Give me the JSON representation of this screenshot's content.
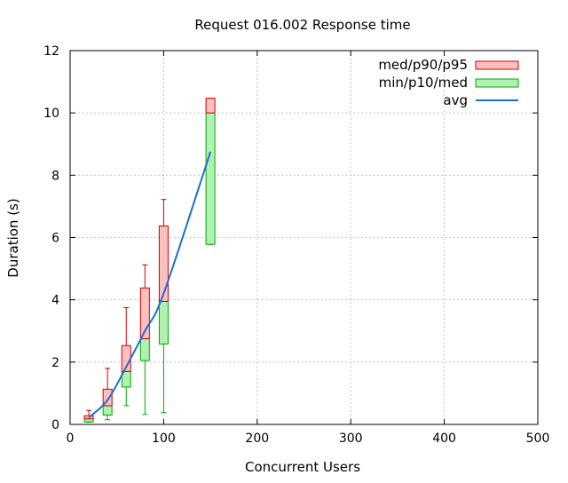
{
  "chart_data": {
    "type": "box",
    "title": "Request 016.002 Response time",
    "xlabel": "Concurrent Users",
    "ylabel": "Duration (s)",
    "xlim": [
      0,
      500
    ],
    "ylim": [
      0,
      12
    ],
    "xticks": [
      0,
      100,
      200,
      300,
      400,
      500
    ],
    "yticks": [
      0,
      2,
      4,
      6,
      8,
      10,
      12
    ],
    "grid": true,
    "legend_position": "top-right",
    "legend": [
      {
        "label": "med/p90/p95",
        "kind": "box",
        "fill": "#ffc0c0",
        "stroke": "#cc0000"
      },
      {
        "label": "min/p10/med",
        "kind": "box",
        "fill": "#b0f0b0",
        "stroke": "#00aa00"
      },
      {
        "label": "avg",
        "kind": "line",
        "stroke": "#1a6fd6"
      }
    ],
    "series": [
      {
        "name": "med/p90/p95",
        "color": "#cc0000",
        "fill": "#ffc0c0",
        "data": [
          {
            "x": 20,
            "med": 0.18,
            "p90": 0.28,
            "p95": 0.45
          },
          {
            "x": 40,
            "med": 0.6,
            "p90": 1.13,
            "p95": 1.8
          },
          {
            "x": 60,
            "med": 1.7,
            "p90": 2.53,
            "p95": 3.75
          },
          {
            "x": 80,
            "med": 2.75,
            "p90": 4.38,
            "p95": 5.12
          },
          {
            "x": 100,
            "med": 3.95,
            "p90": 6.37,
            "p95": 7.22
          },
          {
            "x": 150,
            "med": 10.0,
            "p90": 10.47,
            "p95": 10.47
          }
        ]
      },
      {
        "name": "min/p10/med",
        "color": "#00aa00",
        "fill": "#b0f0b0",
        "data": [
          {
            "x": 20,
            "min": 0.07,
            "p10": 0.08,
            "med": 0.18
          },
          {
            "x": 40,
            "min": 0.15,
            "p10": 0.3,
            "med": 0.6
          },
          {
            "x": 60,
            "min": 0.6,
            "p10": 1.2,
            "med": 1.7
          },
          {
            "x": 80,
            "min": 0.32,
            "p10": 2.05,
            "med": 2.75
          },
          {
            "x": 100,
            "min": 0.38,
            "p10": 2.58,
            "med": 3.95
          },
          {
            "x": 150,
            "min": 5.78,
            "p10": 5.78,
            "med": 10.0
          }
        ]
      },
      {
        "name": "avg",
        "color": "#1a6fd6",
        "x": [
          20,
          40,
          60,
          80,
          100,
          150
        ],
        "y": [
          0.22,
          0.78,
          1.85,
          3.0,
          4.2,
          8.75
        ]
      }
    ]
  }
}
